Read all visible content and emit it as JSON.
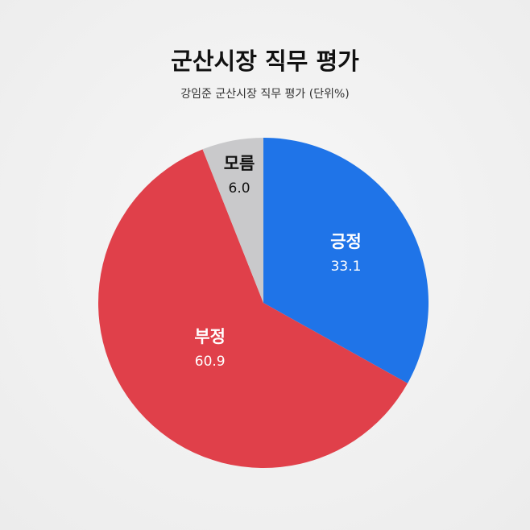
{
  "chart_data": {
    "type": "pie",
    "title": "군산시장 직무 평가",
    "subtitle": "강임준 군산시장 직무 평가 (단위%)",
    "categories": [
      "긍정",
      "부정",
      "모름"
    ],
    "values": [
      33.1,
      60.9,
      6.0
    ],
    "value_labels": [
      "33.1",
      "60.9",
      "6.0"
    ],
    "colors": [
      "#1f74e8",
      "#e0404a",
      "#c9c9cb"
    ]
  }
}
